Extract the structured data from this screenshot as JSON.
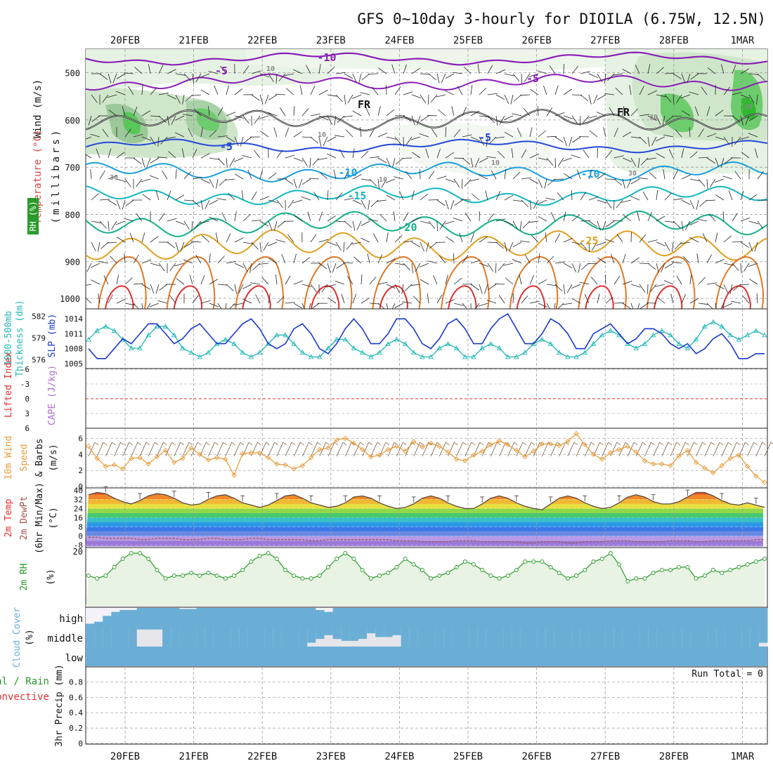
{
  "title": "GFS 0~10day 3-hourly for DIOILA (6.75W, 12.5N)",
  "dates": [
    "20FEB",
    "21FEB",
    "22FEB",
    "23FEB",
    "24FEB",
    "25FEB",
    "26FEB",
    "27FEB",
    "28FEB",
    "1MAR"
  ],
  "colors": {
    "grid": "#9a9a9a",
    "purple": "#8a1fb8",
    "black": "#111111",
    "blue": "#2448d8",
    "lightblue": "#1aa0e0",
    "cyan": "#14b8c0",
    "teal": "#14b08a",
    "orange": "#e0a020",
    "darkorange": "#e07828",
    "red": "#e03030",
    "slp": "#1a3acc",
    "thick": "#22b8b8",
    "wind": "#e89a38",
    "rh": "#2a9a2a",
    "cloud": "#6aaed6"
  },
  "chart_data": [
    {
      "id": "upper",
      "type": "contour",
      "title": "Temperature (°C) / RH (%) / Wind (m/s)",
      "left_labels": [
        "Wind (m/s)",
        "Temperature (°C)",
        "RH (%)",
        "(millibars)"
      ],
      "yaxis_ticks": [
        "500",
        "600",
        "700",
        "800",
        "900",
        "1000"
      ],
      "contour_labels": [
        "-10",
        "-5",
        "-5",
        "FR",
        "FR",
        "-5",
        "-5",
        "-10",
        "-10",
        "-15",
        "-20",
        "-25",
        "10",
        "10",
        "10",
        "10",
        "30",
        "30",
        "30",
        "30"
      ],
      "ylim": [
        450,
        1000
      ],
      "isotherms": [
        {
          "label": "-10",
          "approx_pressure": 470
        },
        {
          "label": "-5",
          "approx_pressure": 520
        },
        {
          "label": "FR",
          "approx_pressure": 600
        },
        {
          "label": "-5",
          "approx_pressure": 655
        },
        {
          "label": "-10",
          "approx_pressure": 710
        },
        {
          "label": "-15",
          "approx_pressure": 760
        },
        {
          "label": "-20",
          "approx_pressure": 820
        },
        {
          "label": "-25",
          "approx_pressure": 865
        }
      ]
    },
    {
      "id": "slp_thickness",
      "type": "line",
      "left_labels": [
        "1000-500mb",
        "Thickness (dm)",
        "SLP (mb)"
      ],
      "left_ticks": [
        "582",
        "579",
        "576"
      ],
      "right_ticks": [
        "1014",
        "1011",
        "1008",
        "1005"
      ],
      "series": [
        {
          "name": "SLP (mb)",
          "unit": "mb",
          "values": [
            1008,
            1006,
            1006,
            1008,
            1010,
            1009,
            1011,
            1013,
            1013,
            1011,
            1009,
            1010,
            1012,
            1013,
            1011,
            1009,
            1009,
            1011,
            1013,
            1014,
            1012,
            1009,
            1008,
            1009,
            1012,
            1013,
            1011,
            1008,
            1007,
            1009,
            1012,
            1014,
            1012,
            1009,
            1009,
            1011,
            1014,
            1014,
            1012,
            1009,
            1008,
            1010,
            1013,
            1014,
            1012,
            1009,
            1009,
            1012,
            1014,
            1015,
            1012,
            1009,
            1009,
            1011,
            1014,
            1013,
            1011,
            1008,
            1008,
            1011,
            1012,
            1013,
            1011,
            1009,
            1010,
            1012,
            1012,
            1011,
            1009,
            1008,
            1009,
            1007,
            1008,
            1010,
            1011,
            1009,
            1006,
            1006,
            1007,
            1007
          ]
        },
        {
          "name": "1000-500mb Thickness (dm)",
          "unit": "dm",
          "values": [
            578.8,
            580.0,
            580.6,
            580.0,
            578.8,
            577.6,
            577.6,
            579.4,
            580.6,
            580.6,
            579.4,
            577.6,
            577.0,
            576.4,
            577.0,
            578.2,
            578.8,
            578.2,
            577.0,
            576.4,
            577.0,
            578.2,
            579.4,
            579.4,
            578.2,
            577.0,
            576.4,
            576.4,
            577.6,
            578.8,
            578.8,
            577.6,
            577.0,
            576.4,
            577.0,
            578.2,
            578.8,
            578.2,
            577.0,
            576.4,
            576.4,
            577.6,
            578.2,
            577.6,
            576.4,
            576.4,
            577.6,
            578.2,
            577.6,
            576.4,
            576.4,
            577.0,
            578.2,
            578.8,
            578.2,
            577.0,
            576.4,
            576.4,
            577.0,
            578.2,
            579.4,
            580.0,
            579.4,
            578.2,
            577.6,
            578.2,
            579.4,
            580.0,
            579.4,
            578.2,
            577.6,
            578.8,
            580.6,
            581.2,
            580.6,
            579.4,
            578.8,
            579.4,
            580.0,
            579.4
          ]
        }
      ]
    },
    {
      "id": "lifted_cape",
      "type": "line",
      "left_labels": [
        "Lifted Index",
        "CAPE (J/kg)"
      ],
      "left_ticks": [
        "-6",
        "-3",
        "0",
        "3",
        "6"
      ],
      "series": [
        {
          "name": "Lifted Index",
          "values": []
        },
        {
          "name": "CAPE (J/kg)",
          "values": []
        }
      ]
    },
    {
      "id": "wind10m",
      "type": "line",
      "left_labels": [
        "10m Wind",
        "Speed",
        "& Barbs",
        "(m/s)"
      ],
      "left_ticks": [
        "6",
        "4",
        "2",
        "0"
      ],
      "ylim": [
        0,
        7
      ],
      "series": [
        {
          "name": "10m Wind Speed",
          "unit": "m/s",
          "values": [
            5.0,
            3.5,
            2.5,
            2.7,
            2.2,
            3.5,
            3.6,
            2.8,
            3.7,
            4.5,
            3.0,
            3.5,
            4.8,
            4.0,
            3.3,
            3.6,
            3.4,
            1.4,
            4.1,
            4.2,
            4.2,
            3.6,
            2.8,
            2.7,
            2.2,
            2.6,
            3.6,
            4.6,
            4.8,
            5.8,
            6.0,
            5.4,
            4.6,
            3.7,
            3.9,
            4.6,
            5.0,
            4.4,
            5.6,
            4.9,
            5.4,
            5.0,
            4.3,
            3.4,
            3.2,
            3.9,
            4.4,
            5.2,
            5.7,
            5.2,
            4.5,
            3.7,
            4.4,
            5.3,
            5.3,
            5.1,
            5.6,
            6.6,
            5.2,
            4.0,
            3.4,
            4.2,
            4.6,
            5.0,
            4.3,
            3.2,
            2.8,
            2.8,
            2.6,
            3.8,
            4.5,
            3.0,
            2.3,
            1.7,
            2.6,
            3.5,
            3.9,
            2.5,
            1.3,
            0.5
          ]
        }
      ]
    },
    {
      "id": "temp2m",
      "type": "area",
      "left_labels": [
        "2m Temp",
        "2m DewPt",
        "(6hr Min/Max)",
        "(°C)"
      ],
      "left_ticks": [
        "40",
        "32",
        "24",
        "16",
        "8",
        "0",
        "-8"
      ],
      "ylim": [
        -10,
        42
      ],
      "series": [
        {
          "name": "2m Temp",
          "unit": "°C",
          "values": [
            36,
            38,
            37,
            33,
            30,
            28,
            31,
            35,
            37,
            36,
            33,
            29,
            27,
            28,
            32,
            35,
            36,
            33,
            29,
            27,
            25,
            27,
            31,
            35,
            36,
            33,
            29,
            27,
            25,
            26,
            29,
            34,
            35,
            33,
            29,
            26,
            24,
            25,
            28,
            33,
            35,
            33,
            29,
            26,
            24,
            24,
            28,
            33,
            35,
            33,
            29,
            26,
            24,
            23,
            28,
            33,
            35,
            33,
            29,
            26,
            24,
            25,
            29,
            34,
            36,
            34,
            30,
            28,
            28,
            30,
            34,
            38,
            38,
            35,
            31,
            28,
            27,
            29,
            27,
            25
          ]
        },
        {
          "name": "2m DewPt",
          "unit": "°C",
          "values": [
            -1,
            -1,
            -2,
            -2,
            -2,
            -2,
            -3,
            -3,
            -2,
            -2,
            -2,
            -3,
            -3,
            -3,
            -2,
            -2,
            -3,
            -3,
            -3,
            -2,
            -2,
            -3,
            -3,
            -3,
            -3,
            -3,
            -4,
            -4,
            -3,
            -3,
            -3,
            -3,
            -3,
            -3,
            -3,
            -3,
            -4,
            -4,
            -4,
            -5,
            -5,
            -5,
            -5,
            -4,
            -4,
            -4,
            -5,
            -5,
            -5,
            -5,
            -5,
            -6,
            -6,
            -5,
            -5,
            -5,
            -6,
            -6,
            -5,
            -5,
            -5,
            -4,
            -4,
            -4,
            -5,
            -5,
            -5,
            -5,
            -4,
            -4,
            -4,
            -5,
            -5,
            -4,
            -4,
            -4,
            -4,
            -4,
            -3,
            -3
          ]
        }
      ]
    },
    {
      "id": "rh2m",
      "type": "line",
      "left_labels": [
        "2m RH",
        "(%)"
      ],
      "left_ticks": [
        "20"
      ],
      "ylim": [
        0,
        20
      ],
      "series": [
        {
          "name": "2m RH",
          "unit": "%",
          "values": [
            11,
            10,
            11,
            14,
            17,
            19,
            19,
            17,
            13,
            10,
            11,
            11,
            12,
            11,
            12,
            11,
            10,
            11,
            13,
            16,
            18,
            19,
            17,
            13,
            11,
            10,
            10,
            11,
            14,
            17,
            19,
            17,
            13,
            10,
            11,
            12,
            14,
            17,
            15,
            13,
            10,
            11,
            12,
            14,
            16,
            15,
            13,
            11,
            10,
            11,
            13,
            16,
            16,
            16,
            14,
            12,
            10,
            11,
            13,
            16,
            17,
            19,
            15,
            9,
            10,
            10,
            12,
            13,
            13,
            14,
            14,
            10,
            11,
            13,
            12,
            13,
            14,
            15,
            16,
            17
          ]
        }
      ]
    },
    {
      "id": "cloud",
      "type": "heatmap",
      "left_labels": [
        "Cloud Cover",
        "(%)"
      ],
      "left_ticks": [
        "high",
        "middle",
        "low"
      ],
      "series": [
        {
          "name": "high",
          "values": [
            80,
            70,
            40,
            20,
            10,
            10,
            0,
            0,
            0,
            0,
            0,
            5,
            5,
            0,
            0,
            0,
            0,
            0,
            0,
            0,
            0,
            0,
            0,
            0,
            0,
            0,
            0,
            10,
            20,
            0,
            0,
            0,
            0,
            0,
            0,
            0,
            0,
            0,
            0,
            0,
            0,
            0,
            0,
            0,
            0,
            0,
            0,
            0,
            0,
            0,
            0,
            0,
            0,
            0,
            0,
            0,
            0,
            0,
            0,
            0,
            0,
            0,
            0,
            0,
            0,
            0,
            0,
            0,
            0,
            0,
            0,
            0,
            0,
            0,
            0,
            0,
            0,
            0,
            0,
            0
          ]
        },
        {
          "name": "middle",
          "values": [
            0,
            0,
            0,
            0,
            0,
            0,
            90,
            90,
            90,
            0,
            0,
            0,
            0,
            0,
            0,
            0,
            0,
            0,
            0,
            0,
            0,
            0,
            0,
            0,
            0,
            0,
            20,
            40,
            60,
            40,
            30,
            30,
            40,
            70,
            50,
            50,
            60,
            0,
            0,
            0,
            0,
            0,
            0,
            0,
            0,
            0,
            0,
            0,
            0,
            0,
            0,
            0,
            0,
            0,
            0,
            0,
            0,
            0,
            0,
            0,
            0,
            0,
            0,
            0,
            0,
            0,
            0,
            0,
            0,
            0,
            0,
            0,
            0,
            0,
            0,
            0,
            0,
            0,
            0,
            20
          ]
        },
        {
          "name": "low",
          "values": []
        }
      ]
    },
    {
      "id": "precip",
      "type": "bar",
      "left_labels": [
        "Total / Rain",
        "Convective",
        "3hr Precip (mm)"
      ],
      "left_ticks": [
        "0.8",
        "0.6",
        "0.4",
        "0.2",
        "0"
      ],
      "annotation": "Run Total = 0",
      "ylim": [
        0,
        0.95
      ],
      "series": [
        {
          "name": "3hr Precip",
          "unit": "mm",
          "values": []
        }
      ]
    }
  ]
}
